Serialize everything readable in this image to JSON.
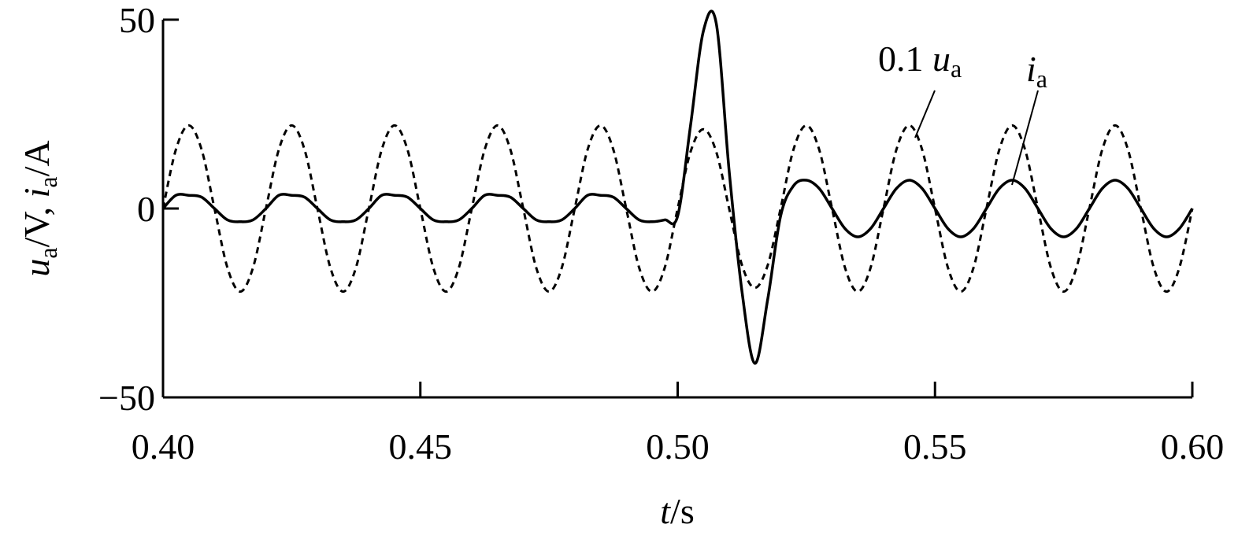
{
  "chart_data": {
    "type": "line",
    "xlabel": [
      "t",
      "/s"
    ],
    "ylabel": [
      "u",
      "a",
      "/V, ",
      "i",
      "a",
      "/A"
    ],
    "xlim": [
      0.4,
      0.6
    ],
    "ylim": [
      -50,
      50
    ],
    "xticks": [
      {
        "value": 0.4,
        "label": "0.40"
      },
      {
        "value": 0.45,
        "label": "0.45"
      },
      {
        "value": 0.5,
        "label": "0.50"
      },
      {
        "value": 0.55,
        "label": "0.55"
      },
      {
        "value": 0.6,
        "label": "0.60"
      }
    ],
    "yticks": [
      {
        "value": -50,
        "label": "−50"
      },
      0,
      50
    ],
    "x": [
      0.4,
      0.4025,
      0.405,
      0.4075,
      0.41,
      0.4125,
      0.415,
      0.4175,
      0.42,
      0.4225,
      0.425,
      0.4275,
      0.43,
      0.4325,
      0.435,
      0.4375,
      0.44,
      0.4425,
      0.445,
      0.4475,
      0.45,
      0.4525,
      0.455,
      0.4575,
      0.46,
      0.4625,
      0.465,
      0.4675,
      0.47,
      0.4725,
      0.475,
      0.4775,
      0.48,
      0.4825,
      0.485,
      0.4875,
      0.49,
      0.4925,
      0.495,
      0.4975,
      0.5,
      0.5025,
      0.505,
      0.5075,
      0.51,
      0.5125,
      0.515,
      0.5175,
      0.52,
      0.5225,
      0.525,
      0.5275,
      0.53,
      0.5325,
      0.535,
      0.5375,
      0.54,
      0.5425,
      0.545,
      0.5475,
      0.55,
      0.5525,
      0.555,
      0.5575,
      0.56,
      0.5625,
      0.565,
      0.5675,
      0.57,
      0.5725,
      0.575,
      0.5775,
      0.58,
      0.5825,
      0.585,
      0.5875,
      0.59,
      0.5925,
      0.595,
      0.5975,
      0.6
    ],
    "series": [
      {
        "name": [
          "0.1 ",
          "u",
          "a"
        ],
        "color": "#000000",
        "dash": true,
        "values": [
          0,
          15.6,
          22,
          15.6,
          0,
          -15.6,
          -22,
          -15.6,
          0,
          15.6,
          22,
          15.6,
          0,
          -15.6,
          -22,
          -15.6,
          0,
          15.6,
          22,
          15.6,
          0,
          -15.6,
          -22,
          -15.6,
          0,
          15.6,
          22,
          15.6,
          0,
          -15.6,
          -22,
          -15.6,
          0,
          15.6,
          22,
          15.6,
          0,
          -15.6,
          -22,
          -15.6,
          0,
          15,
          21,
          15,
          0,
          -15,
          -21,
          -15,
          0,
          15.6,
          22,
          15.6,
          0,
          -15.6,
          -22,
          -15.6,
          0,
          15.6,
          22,
          15.6,
          0,
          -15.6,
          -22,
          -15.6,
          0,
          15.6,
          22,
          15.6,
          0,
          -15.6,
          -22,
          -15.6,
          0,
          15.6,
          22,
          15.6,
          0,
          -15.6,
          -22,
          -15.6,
          0
        ]
      },
      {
        "name": [
          "i",
          "a"
        ],
        "color": "#000000",
        "dash": false,
        "values": [
          0,
          3.5,
          3.5,
          3,
          0,
          -3,
          -3.5,
          -3,
          0,
          3.5,
          3.5,
          3,
          0,
          -3,
          -3.5,
          -3,
          0,
          3.5,
          3.5,
          3,
          0,
          -3,
          -3.5,
          -3,
          0,
          3.5,
          3.5,
          3,
          0,
          -3,
          -3.5,
          -3,
          0,
          3.5,
          3.5,
          3,
          0,
          -3,
          -3.5,
          -3,
          -2,
          22,
          47,
          49,
          10,
          -22,
          -41,
          -24,
          -2,
          6,
          7.5,
          5.3,
          0,
          -5.3,
          -7.5,
          -5.3,
          0,
          5.3,
          7.5,
          5.3,
          0,
          -5.3,
          -7.5,
          -5.3,
          0,
          5.3,
          7.5,
          5.3,
          0,
          -5.3,
          -7.5,
          -5.3,
          0,
          5.3,
          7.5,
          5.3,
          0,
          -5.3,
          -7.5,
          -5.3,
          0
        ]
      }
    ]
  }
}
